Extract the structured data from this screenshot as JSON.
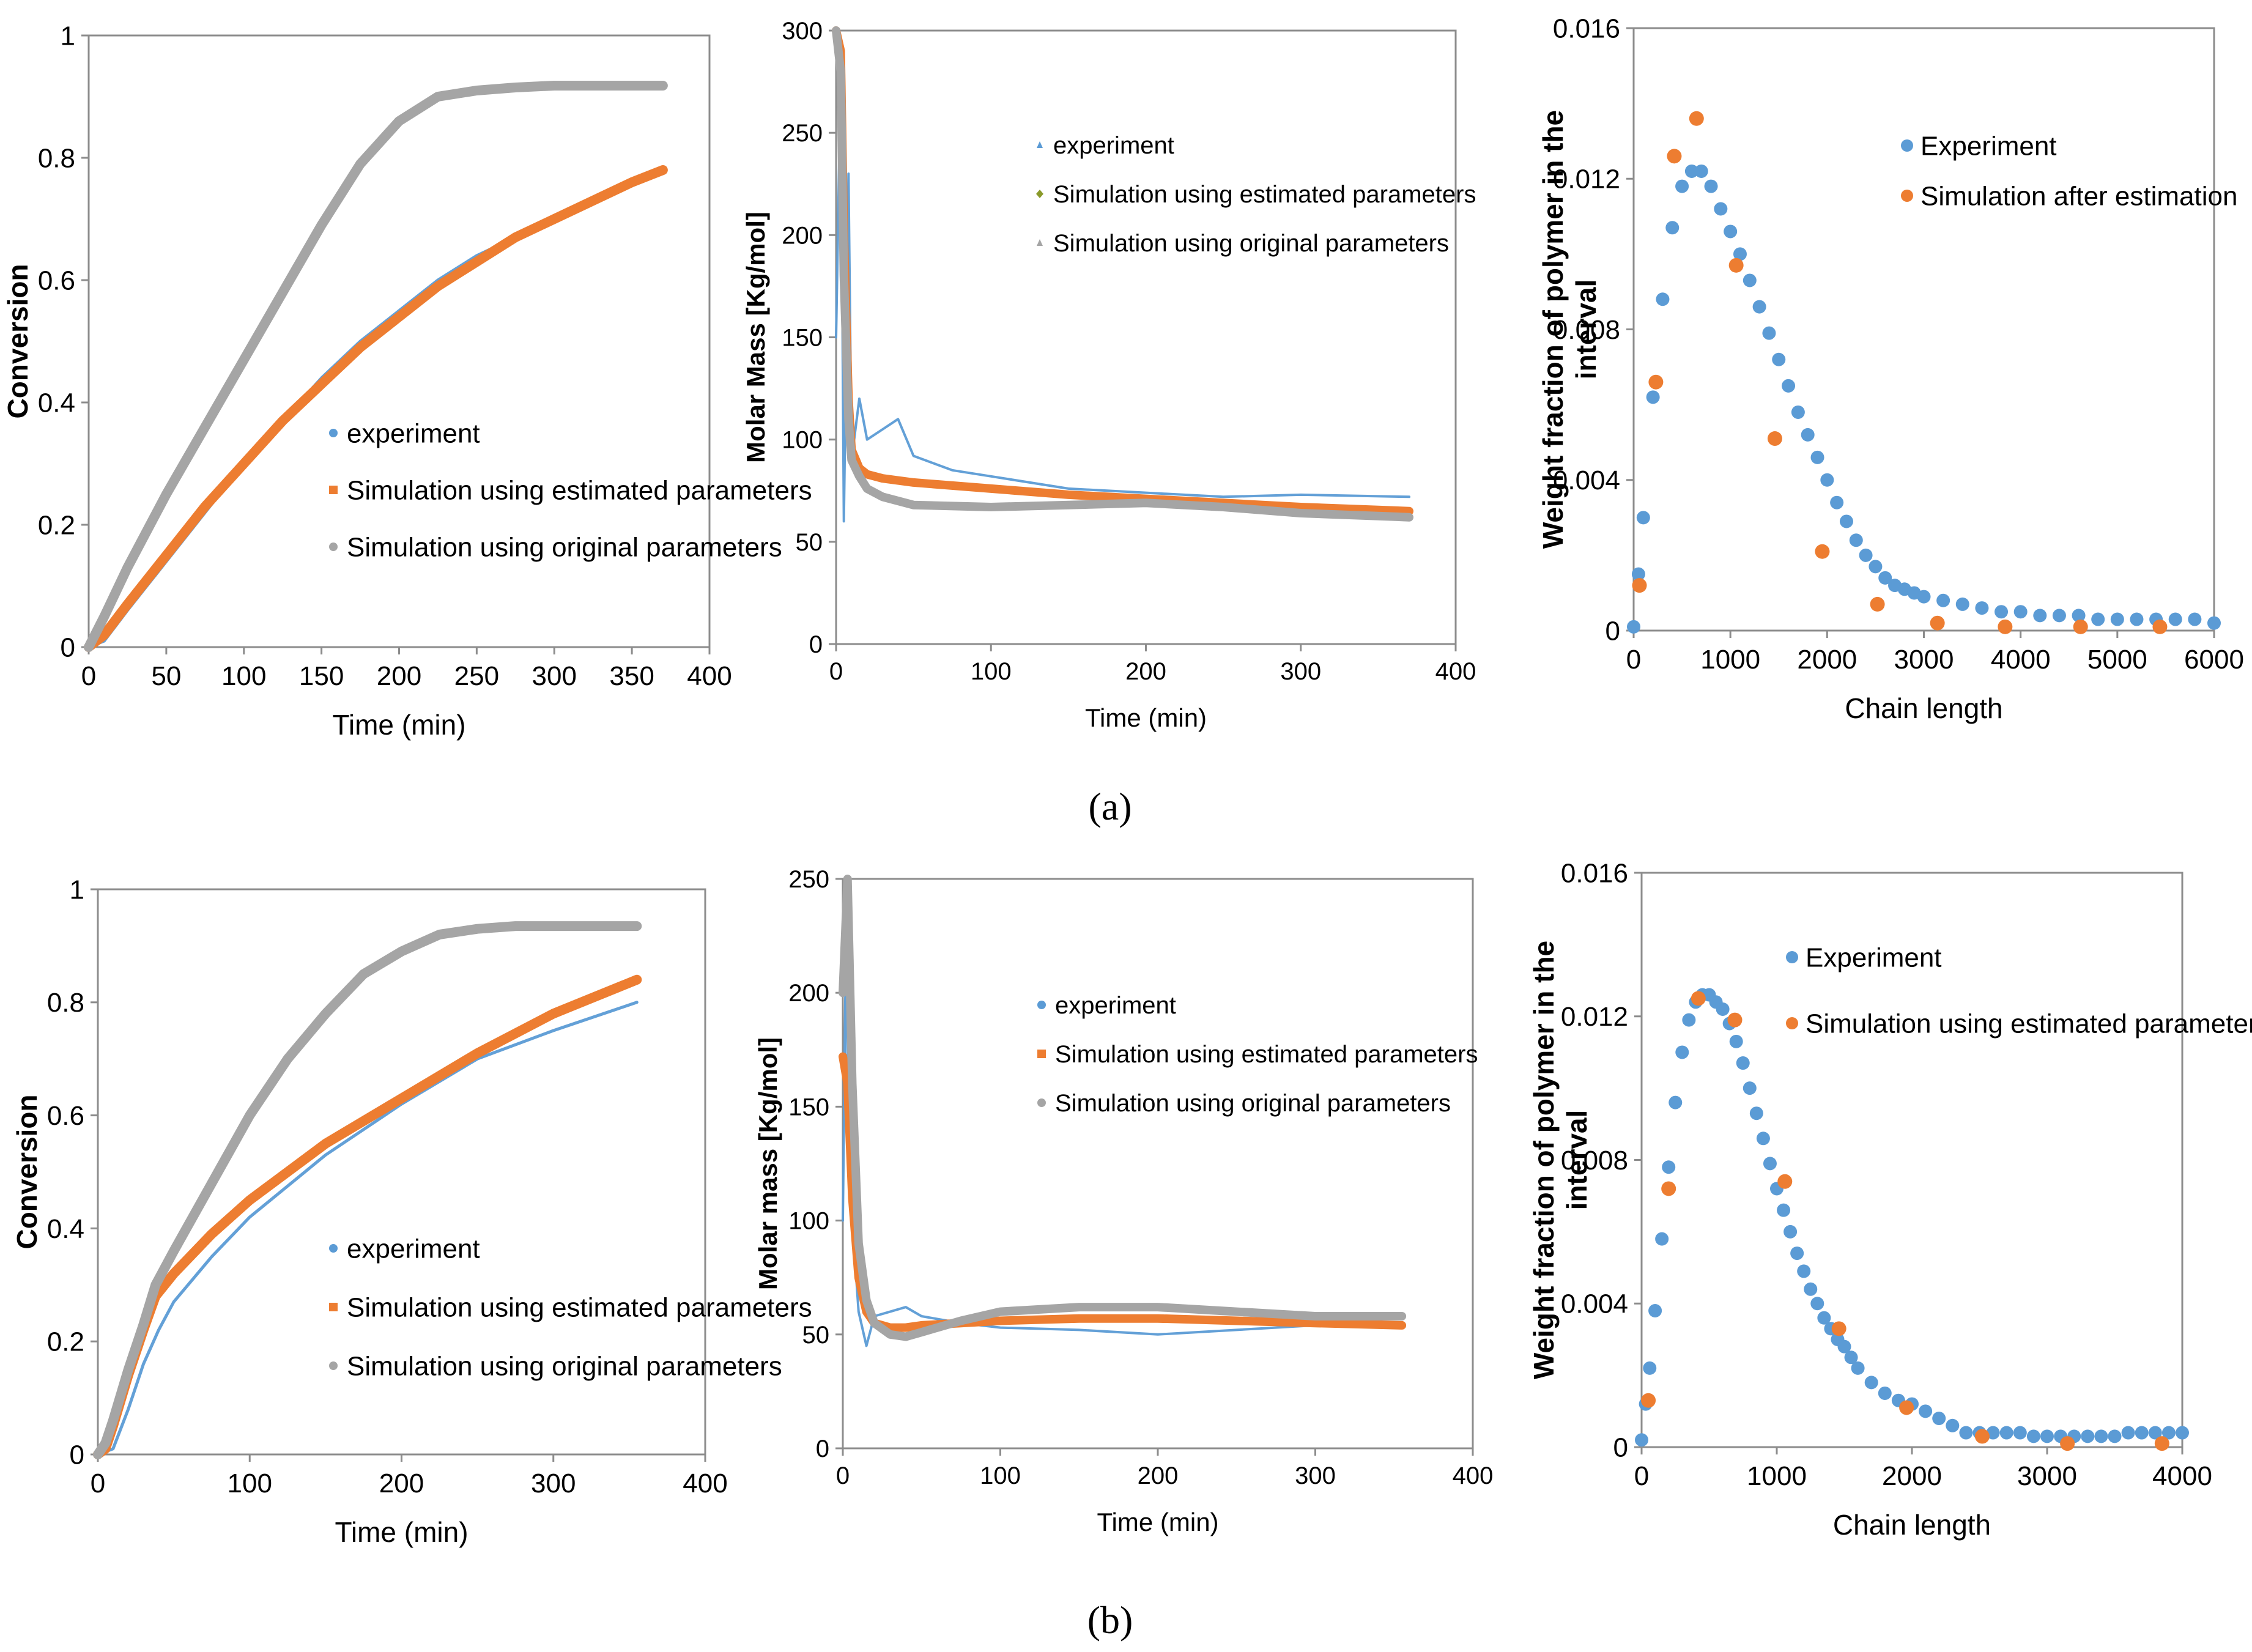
{
  "colors": {
    "experiment": "#5b9bd5",
    "estimated": "#ed7d31",
    "original": "#a5a5a5",
    "estimated_green": "#8a9a2a",
    "axis": "#000000"
  },
  "panel_labels": {
    "a": "(a)",
    "b": "(b)"
  },
  "chart_data": [
    {
      "id": "a1",
      "type": "line",
      "xlabel": "Time (min)",
      "ylabel": "Conversion",
      "xlim": [
        0,
        400
      ],
      "ylim": [
        0,
        1
      ],
      "xticks": [
        0,
        50,
        100,
        150,
        200,
        250,
        300,
        350,
        400
      ],
      "yticks": [
        0,
        0.2,
        0.4,
        0.6,
        0.8,
        1
      ],
      "ytick_labels": [
        "0",
        "0.2",
        "0.4",
        "0.6",
        "0.8",
        "1"
      ],
      "legend": [
        "experiment",
        "Simulation using estimated parameters",
        "Simulation using original parameters"
      ],
      "series": [
        {
          "name": "experiment",
          "x": [
            0,
            10,
            25,
            50,
            75,
            100,
            125,
            150,
            175,
            200,
            225,
            250,
            275,
            300,
            325,
            350,
            370
          ],
          "y": [
            0,
            0.01,
            0.06,
            0.14,
            0.22,
            0.3,
            0.37,
            0.44,
            0.5,
            0.55,
            0.6,
            0.64,
            0.67,
            0.7,
            0.73,
            0.76,
            0.78
          ]
        },
        {
          "name": "Simulation using estimated parameters",
          "x": [
            0,
            10,
            25,
            50,
            75,
            100,
            125,
            150,
            175,
            200,
            225,
            250,
            275,
            300,
            325,
            350,
            370
          ],
          "y": [
            0,
            0.02,
            0.07,
            0.15,
            0.23,
            0.3,
            0.37,
            0.43,
            0.49,
            0.54,
            0.59,
            0.63,
            0.67,
            0.7,
            0.73,
            0.76,
            0.78
          ]
        },
        {
          "name": "Simulation using original parameters",
          "x": [
            0,
            10,
            25,
            50,
            75,
            100,
            125,
            150,
            175,
            200,
            225,
            250,
            275,
            300,
            325,
            350,
            370
          ],
          "y": [
            0,
            0.05,
            0.13,
            0.25,
            0.36,
            0.47,
            0.58,
            0.69,
            0.79,
            0.86,
            0.9,
            0.91,
            0.915,
            0.918,
            0.918,
            0.918,
            0.918
          ]
        }
      ]
    },
    {
      "id": "a2",
      "type": "line",
      "xlabel": "Time (min)",
      "ylabel": "Molar  Mass  [Kg/mol]",
      "xlim": [
        0,
        400
      ],
      "ylim": [
        0,
        300
      ],
      "xticks": [
        0,
        100,
        200,
        300,
        400
      ],
      "yticks": [
        0,
        50,
        100,
        150,
        200,
        250,
        300
      ],
      "legend": [
        "experiment",
        "Simulation using estimated parameters",
        "Simulation using original parameters"
      ],
      "series": [
        {
          "name": "experiment",
          "x": [
            0,
            3,
            5,
            8,
            10,
            15,
            20,
            30,
            40,
            50,
            75,
            100,
            150,
            200,
            250,
            300,
            370
          ],
          "y": [
            150,
            280,
            60,
            230,
            90,
            120,
            100,
            105,
            110,
            92,
            85,
            82,
            76,
            74,
            72,
            73,
            72
          ]
        },
        {
          "name": "Simulation using estimated parameters",
          "x": [
            0,
            3,
            5,
            8,
            10,
            15,
            20,
            30,
            50,
            100,
            150,
            200,
            250,
            300,
            370
          ],
          "y": [
            300,
            290,
            200,
            120,
            95,
            86,
            83,
            81,
            79,
            76,
            73,
            71,
            69,
            67,
            65
          ]
        },
        {
          "name": "Simulation using original parameters",
          "x": [
            0,
            3,
            5,
            8,
            10,
            15,
            20,
            30,
            50,
            100,
            150,
            200,
            250,
            300,
            370
          ],
          "y": [
            300,
            280,
            180,
            110,
            90,
            82,
            76,
            72,
            68,
            67,
            68,
            69,
            67,
            64,
            62
          ]
        }
      ]
    },
    {
      "id": "a3",
      "type": "scatter",
      "xlabel": "Chain length",
      "ylabel": "Weight fraction of polymer in the interval",
      "ylabel_lines": [
        "Weight fraction of polymer in the",
        "interval"
      ],
      "xlim": [
        0,
        6000
      ],
      "ylim": [
        0,
        0.016
      ],
      "xticks": [
        0,
        1000,
        2000,
        3000,
        4000,
        5000,
        6000
      ],
      "yticks": [
        0,
        0.004,
        0.008,
        0.012,
        0.016
      ],
      "ytick_labels": [
        "0",
        "0.004",
        "0.008",
        "0.012",
        "0.016"
      ],
      "legend": [
        "Experiment",
        "Simulation after estimation"
      ],
      "series": [
        {
          "name": "Experiment",
          "x": [
            0,
            50,
            100,
            200,
            300,
            400,
            500,
            600,
            700,
            800,
            900,
            1000,
            1100,
            1200,
            1300,
            1400,
            1500,
            1600,
            1700,
            1800,
            1900,
            2000,
            2100,
            2200,
            2300,
            2400,
            2500,
            2600,
            2700,
            2800,
            2900,
            3000,
            3200,
            3400,
            3600,
            3800,
            4000,
            4200,
            4400,
            4600,
            4800,
            5000,
            5200,
            5400,
            5600,
            5800,
            6000
          ],
          "y": [
            0.0001,
            0.0015,
            0.003,
            0.0062,
            0.0088,
            0.0107,
            0.0118,
            0.0122,
            0.0122,
            0.0118,
            0.0112,
            0.0106,
            0.01,
            0.0093,
            0.0086,
            0.0079,
            0.0072,
            0.0065,
            0.0058,
            0.0052,
            0.0046,
            0.004,
            0.0034,
            0.0029,
            0.0024,
            0.002,
            0.0017,
            0.0014,
            0.0012,
            0.0011,
            0.001,
            0.0009,
            0.0008,
            0.0007,
            0.0006,
            0.0005,
            0.0005,
            0.0004,
            0.0004,
            0.0004,
            0.0003,
            0.0003,
            0.0003,
            0.0003,
            0.0003,
            0.0003,
            0.0002
          ]
        },
        {
          "name": "Simulation after estimation",
          "x": [
            60,
            230,
            420,
            650,
            1060,
            1460,
            1950,
            2520,
            3140,
            3840,
            4620,
            5440
          ],
          "y": [
            0.0012,
            0.0066,
            0.0126,
            0.0136,
            0.0097,
            0.0051,
            0.0021,
            0.0007,
            0.0002,
            0.0001,
            0.0001,
            0.0001
          ]
        }
      ]
    },
    {
      "id": "b1",
      "type": "line",
      "xlabel": "Time (min)",
      "ylabel": "Conversion",
      "xlim": [
        0,
        400
      ],
      "ylim": [
        0,
        1
      ],
      "xticks": [
        0,
        100,
        200,
        300,
        400
      ],
      "yticks": [
        0,
        0.2,
        0.4,
        0.6,
        0.8,
        1
      ],
      "ytick_labels": [
        "0",
        "0.2",
        "0.4",
        "0.6",
        "0.8",
        "1"
      ],
      "legend": [
        "experiment",
        "Simulation using estimated parameters",
        "Simulation using original parameters"
      ],
      "series": [
        {
          "name": "experiment",
          "x": [
            0,
            10,
            20,
            30,
            40,
            50,
            75,
            100,
            150,
            200,
            250,
            300,
            355
          ],
          "y": [
            0,
            0.01,
            0.08,
            0.16,
            0.22,
            0.27,
            0.35,
            0.42,
            0.53,
            0.62,
            0.7,
            0.75,
            0.8
          ]
        },
        {
          "name": "Simulation using estimated parameters",
          "x": [
            0,
            5,
            10,
            20,
            30,
            38,
            50,
            75,
            100,
            150,
            200,
            250,
            300,
            355
          ],
          "y": [
            0,
            0.01,
            0.05,
            0.14,
            0.22,
            0.28,
            0.32,
            0.39,
            0.45,
            0.55,
            0.63,
            0.71,
            0.78,
            0.84
          ]
        },
        {
          "name": "Simulation using original parameters",
          "x": [
            0,
            5,
            10,
            20,
            30,
            38,
            50,
            75,
            100,
            125,
            150,
            175,
            200,
            225,
            250,
            275,
            300,
            355
          ],
          "y": [
            0,
            0.02,
            0.06,
            0.15,
            0.23,
            0.3,
            0.36,
            0.48,
            0.6,
            0.7,
            0.78,
            0.85,
            0.89,
            0.92,
            0.93,
            0.935,
            0.935,
            0.935
          ]
        }
      ]
    },
    {
      "id": "b2",
      "type": "line",
      "xlabel": "Time (min)",
      "ylabel": "Molar mass [Kg/mol]",
      "xlim": [
        0,
        400
      ],
      "ylim": [
        0,
        250
      ],
      "xticks": [
        0,
        100,
        200,
        300,
        400
      ],
      "yticks": [
        0,
        50,
        100,
        150,
        200,
        250
      ],
      "legend": [
        "experiment",
        "Simulation using estimated parameters",
        "Simulation using original parameters"
      ],
      "series": [
        {
          "name": "experiment",
          "x": [
            0,
            2,
            4,
            6,
            8,
            10,
            15,
            20,
            30,
            40,
            50,
            75,
            100,
            150,
            200,
            250,
            300,
            355
          ],
          "y": [
            100,
            225,
            120,
            160,
            80,
            60,
            45,
            58,
            60,
            62,
            58,
            55,
            53,
            52,
            50,
            52,
            54,
            55
          ]
        },
        {
          "name": "Simulation using estimated parameters",
          "x": [
            0,
            3,
            6,
            10,
            15,
            20,
            30,
            40,
            50,
            75,
            100,
            150,
            200,
            250,
            300,
            355
          ],
          "y": [
            172,
            160,
            110,
            75,
            60,
            55,
            53,
            53,
            54,
            55,
            56,
            57,
            57,
            56,
            55,
            54
          ]
        },
        {
          "name": "Simulation using original parameters",
          "x": [
            0,
            3,
            6,
            10,
            15,
            20,
            30,
            40,
            50,
            75,
            100,
            150,
            200,
            250,
            300,
            355
          ],
          "y": [
            200,
            250,
            160,
            90,
            65,
            55,
            50,
            49,
            51,
            56,
            60,
            62,
            62,
            60,
            58,
            58
          ]
        }
      ]
    },
    {
      "id": "b3",
      "type": "scatter",
      "xlabel": "Chain length",
      "ylabel": "Weight fraction of polymer in the interval",
      "ylabel_lines": [
        "Weight fraction of polymer in the",
        "interval"
      ],
      "xlim": [
        0,
        4000
      ],
      "ylim": [
        0,
        0.016
      ],
      "xticks": [
        0,
        1000,
        2000,
        3000,
        4000
      ],
      "yticks": [
        0,
        0.004,
        0.008,
        0.012,
        0.016
      ],
      "ytick_labels": [
        "0",
        "0.004",
        "0.008",
        "0.012",
        "0.016"
      ],
      "legend": [
        "Experiment",
        "Simulation using estimated parameters"
      ],
      "series": [
        {
          "name": "Experiment",
          "x": [
            0,
            30,
            60,
            100,
            150,
            200,
            250,
            300,
            350,
            400,
            450,
            500,
            550,
            600,
            650,
            700,
            750,
            800,
            850,
            900,
            950,
            1000,
            1050,
            1100,
            1150,
            1200,
            1250,
            1300,
            1350,
            1400,
            1450,
            1500,
            1550,
            1600,
            1700,
            1800,
            1900,
            2000,
            2100,
            2200,
            2300,
            2400,
            2500,
            2600,
            2700,
            2800,
            2900,
            3000,
            3100,
            3200,
            3300,
            3400,
            3500,
            3600,
            3700,
            3800,
            3900,
            4000
          ],
          "y": [
            0.0002,
            0.0012,
            0.0022,
            0.0038,
            0.0058,
            0.0078,
            0.0096,
            0.011,
            0.0119,
            0.0124,
            0.0126,
            0.0126,
            0.0124,
            0.0122,
            0.0118,
            0.0113,
            0.0107,
            0.01,
            0.0093,
            0.0086,
            0.0079,
            0.0072,
            0.0066,
            0.006,
            0.0054,
            0.0049,
            0.0044,
            0.004,
            0.0036,
            0.0033,
            0.003,
            0.0028,
            0.0025,
            0.0022,
            0.0018,
            0.0015,
            0.0013,
            0.0012,
            0.001,
            0.0008,
            0.0006,
            0.0004,
            0.0004,
            0.0004,
            0.0004,
            0.0004,
            0.0003,
            0.0003,
            0.0003,
            0.0003,
            0.0003,
            0.0003,
            0.0003,
            0.0004,
            0.0004,
            0.0004,
            0.0004,
            0.0004
          ]
        },
        {
          "name": "Simulation using estimated parameters",
          "x": [
            50,
            200,
            420,
            690,
            1060,
            1460,
            1960,
            2520,
            3150,
            3850
          ],
          "y": [
            0.0013,
            0.0072,
            0.0125,
            0.0119,
            0.0074,
            0.0033,
            0.0011,
            0.0003,
            0.0001,
            0.0001
          ]
        }
      ]
    }
  ]
}
